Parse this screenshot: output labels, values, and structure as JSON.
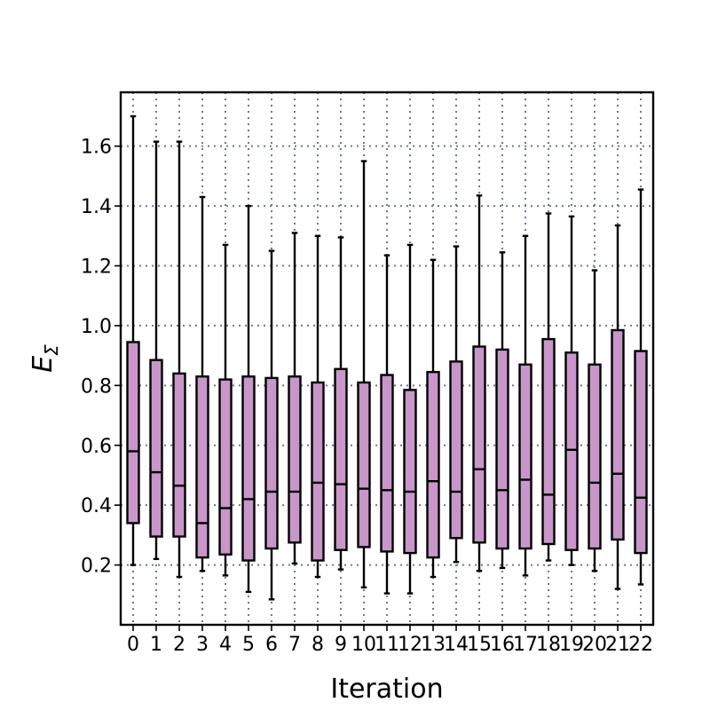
{
  "chart_data": {
    "type": "box",
    "xlabel": "Iteration",
    "ylabel": "E",
    "ylabel_subscript": "Σ",
    "ylim": [
      0.0,
      1.78
    ],
    "yticks": [
      0.2,
      0.4,
      0.6,
      0.8,
      1.0,
      1.2,
      1.4,
      1.6
    ],
    "ytick_labels": [
      "0.2",
      "0.4",
      "0.6",
      "0.8",
      "1.0",
      "1.2",
      "1.4",
      "1.6"
    ],
    "categories": [
      "0",
      "1",
      "2",
      "3",
      "4",
      "5",
      "6",
      "7",
      "8",
      "9",
      "10",
      "11",
      "12",
      "13",
      "14",
      "15",
      "16",
      "17",
      "18",
      "19",
      "20",
      "21",
      "22"
    ],
    "grid": true,
    "box_color": "#c896c8",
    "edge_color": "#000000",
    "grid_color": "#6b7b90",
    "boxes": [
      {
        "whislo": 0.2,
        "q1": 0.34,
        "med": 0.58,
        "q3": 0.945,
        "whishi": 1.7
      },
      {
        "whislo": 0.22,
        "q1": 0.295,
        "med": 0.51,
        "q3": 0.885,
        "whishi": 1.615
      },
      {
        "whislo": 0.16,
        "q1": 0.295,
        "med": 0.465,
        "q3": 0.84,
        "whishi": 1.615
      },
      {
        "whislo": 0.18,
        "q1": 0.225,
        "med": 0.34,
        "q3": 0.83,
        "whishi": 1.43
      },
      {
        "whislo": 0.165,
        "q1": 0.235,
        "med": 0.39,
        "q3": 0.82,
        "whishi": 1.27
      },
      {
        "whislo": 0.11,
        "q1": 0.215,
        "med": 0.42,
        "q3": 0.83,
        "whishi": 1.4
      },
      {
        "whislo": 0.085,
        "q1": 0.255,
        "med": 0.445,
        "q3": 0.825,
        "whishi": 1.25
      },
      {
        "whislo": 0.205,
        "q1": 0.275,
        "med": 0.445,
        "q3": 0.83,
        "whishi": 1.31
      },
      {
        "whislo": 0.16,
        "q1": 0.215,
        "med": 0.475,
        "q3": 0.81,
        "whishi": 1.3
      },
      {
        "whislo": 0.185,
        "q1": 0.25,
        "med": 0.47,
        "q3": 0.855,
        "whishi": 1.295
      },
      {
        "whislo": 0.125,
        "q1": 0.26,
        "med": 0.455,
        "q3": 0.81,
        "whishi": 1.55
      },
      {
        "whislo": 0.105,
        "q1": 0.245,
        "med": 0.45,
        "q3": 0.835,
        "whishi": 1.235
      },
      {
        "whislo": 0.105,
        "q1": 0.24,
        "med": 0.445,
        "q3": 0.785,
        "whishi": 1.27
      },
      {
        "whislo": 0.16,
        "q1": 0.225,
        "med": 0.48,
        "q3": 0.845,
        "whishi": 1.22
      },
      {
        "whislo": 0.21,
        "q1": 0.29,
        "med": 0.445,
        "q3": 0.88,
        "whishi": 1.265
      },
      {
        "whislo": 0.18,
        "q1": 0.275,
        "med": 0.52,
        "q3": 0.93,
        "whishi": 1.435
      },
      {
        "whislo": 0.19,
        "q1": 0.255,
        "med": 0.45,
        "q3": 0.92,
        "whishi": 1.245
      },
      {
        "whislo": 0.165,
        "q1": 0.255,
        "med": 0.485,
        "q3": 0.87,
        "whishi": 1.3
      },
      {
        "whislo": 0.215,
        "q1": 0.27,
        "med": 0.435,
        "q3": 0.955,
        "whishi": 1.375
      },
      {
        "whislo": 0.2,
        "q1": 0.25,
        "med": 0.585,
        "q3": 0.91,
        "whishi": 1.365
      },
      {
        "whislo": 0.18,
        "q1": 0.255,
        "med": 0.475,
        "q3": 0.87,
        "whishi": 1.185
      },
      {
        "whislo": 0.12,
        "q1": 0.285,
        "med": 0.505,
        "q3": 0.985,
        "whishi": 1.335
      },
      {
        "whislo": 0.135,
        "q1": 0.24,
        "med": 0.425,
        "q3": 0.915,
        "whishi": 1.455
      }
    ]
  }
}
